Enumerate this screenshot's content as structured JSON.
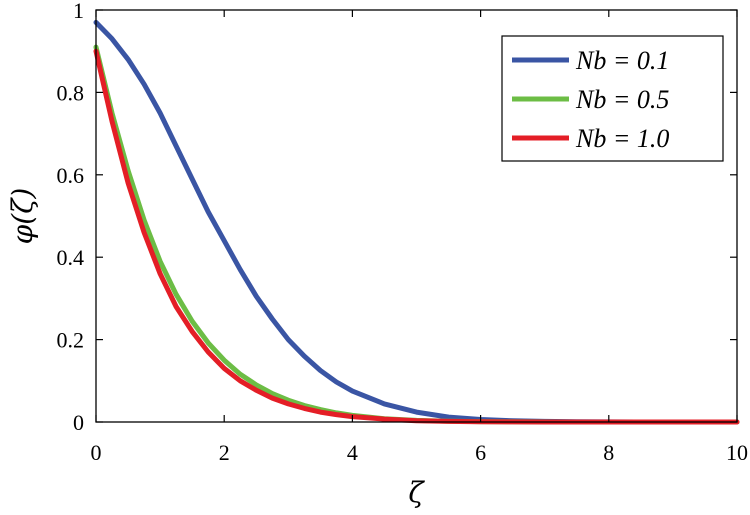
{
  "chart_data": {
    "type": "line",
    "xlabel": "ζ",
    "ylabel": "φ(ζ)",
    "xlim": [
      0,
      10
    ],
    "ylim": [
      0,
      1
    ],
    "xticks": [
      "0",
      "2",
      "4",
      "6",
      "8",
      "10"
    ],
    "yticks": [
      "0",
      "0.2",
      "0.4",
      "0.6",
      "0.8",
      "1"
    ],
    "grid": false,
    "legend_position": "top-right",
    "x": [
      0,
      0.25,
      0.5,
      0.75,
      1,
      1.25,
      1.5,
      1.75,
      2,
      2.25,
      2.5,
      2.75,
      3,
      3.25,
      3.5,
      3.75,
      4,
      4.5,
      5,
      5.5,
      6,
      6.5,
      7,
      7.5,
      8,
      9,
      10
    ],
    "series": [
      {
        "name": "Nb = 0.1",
        "color": "#3a55a4",
        "values": [
          0.97,
          0.93,
          0.88,
          0.82,
          0.75,
          0.67,
          0.59,
          0.51,
          0.44,
          0.37,
          0.305,
          0.25,
          0.2,
          0.16,
          0.125,
          0.097,
          0.075,
          0.044,
          0.024,
          0.012,
          0.006,
          0.003,
          0.0015,
          0.0007,
          0.0003,
          0.0001,
          0.0
        ]
      },
      {
        "name": "Nb = 0.5",
        "color": "#6cbd45",
        "values": [
          0.91,
          0.75,
          0.61,
          0.49,
          0.39,
          0.31,
          0.245,
          0.192,
          0.15,
          0.116,
          0.09,
          0.069,
          0.053,
          0.04,
          0.03,
          0.022,
          0.016,
          0.008,
          0.004,
          0.002,
          0.001,
          0.0005,
          0.0002,
          0.0001,
          0.0,
          0.0,
          0.0
        ]
      },
      {
        "name": "Nb = 1.0",
        "color": "#e41e26",
        "values": [
          0.9,
          0.73,
          0.58,
          0.46,
          0.36,
          0.28,
          0.22,
          0.17,
          0.13,
          0.1,
          0.077,
          0.058,
          0.044,
          0.033,
          0.024,
          0.018,
          0.013,
          0.007,
          0.003,
          0.0015,
          0.0007,
          0.0003,
          0.0001,
          0.0,
          0.0,
          0.0,
          0.0
        ]
      }
    ]
  }
}
